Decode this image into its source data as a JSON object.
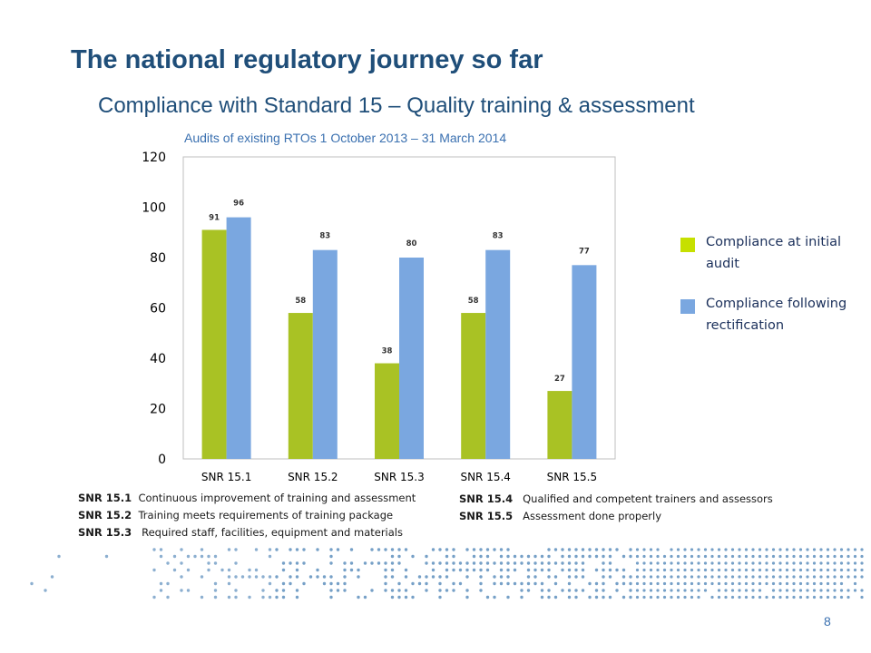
{
  "slide": {
    "title": "The national regulatory journey so far",
    "subtitle": "Compliance with Standard 15 – Quality training & assessment",
    "caption": "Audits of existing RTOs 1 October 2013 – 31 March 2014",
    "page_number": "8"
  },
  "legend": [
    {
      "label": "Compliance at initial audit",
      "color": "#a9c224"
    },
    {
      "label": "Compliance following rectification",
      "color": "#7aa7e0"
    }
  ],
  "definitions": [
    {
      "code": "SNR 15.1",
      "text": "Continuous improvement of training and assessment"
    },
    {
      "code": "SNR 15.2",
      "text": "Training meets requirements of training package"
    },
    {
      "code": "SNR 15.3",
      "text": "Required staff, facilities, equipment and materials"
    },
    {
      "code": "SNR 15.4",
      "text": "Qualified and competent trainers and assessors"
    },
    {
      "code": "SNR 15.5",
      "text": "Assessment done properly"
    }
  ],
  "chart_data": {
    "type": "bar",
    "title": "",
    "xlabel": "",
    "ylabel": "",
    "categories": [
      "SNR 15.1",
      "SNR 15.2",
      "SNR 15.3",
      "SNR 15.4",
      "SNR 15.5"
    ],
    "series": [
      {
        "name": "Compliance at initial audit",
        "values": [
          91,
          58,
          38,
          58,
          27
        ],
        "color": "#a9c224"
      },
      {
        "name": "Compliance following rectification",
        "values": [
          96,
          83,
          80,
          83,
          77
        ],
        "color": "#7aa7e0"
      }
    ],
    "ylim": [
      0,
      120
    ],
    "yticks": [
      "0",
      "20",
      "40",
      "60",
      "80",
      "100",
      "120"
    ],
    "grid": false,
    "legend_position": "right"
  },
  "colors": {
    "title": "#1f4e79",
    "caption": "#3a70b0",
    "dots": "#6f9bc4"
  }
}
